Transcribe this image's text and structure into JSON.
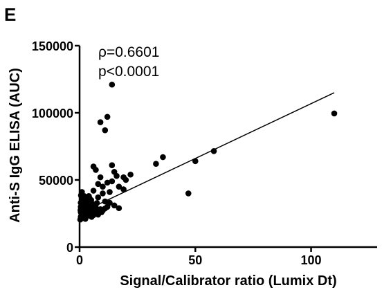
{
  "chart_data": {
    "type": "scatter",
    "panel_label": "E",
    "xlabel": "Signal/Calibrator ratio (Lumix Dt)",
    "ylabel": "Anti-S IgG ELISA (AUC)",
    "xlim": [
      0,
      120
    ],
    "ylim": [
      0,
      150000
    ],
    "xticks": [
      0,
      50,
      100
    ],
    "xtick_labels": [
      "0",
      "50",
      "100"
    ],
    "yticks": [
      0,
      50000,
      100000,
      150000
    ],
    "ytick_labels": [
      "0",
      "50000",
      "100000",
      "150000"
    ],
    "grid": false,
    "annotations": [
      "ρ=0.6601",
      "p<0.0001"
    ],
    "trendline": {
      "x": [
        0,
        110
      ],
      "y": [
        25200,
        115000
      ]
    },
    "points": [
      [
        110,
        99500
      ],
      [
        58,
        71500
      ],
      [
        50,
        64000
      ],
      [
        47,
        40000
      ],
      [
        36,
        67000
      ],
      [
        33,
        62000
      ],
      [
        14,
        121000
      ],
      [
        12,
        97000
      ],
      [
        9,
        93000
      ],
      [
        11,
        87000
      ],
      [
        6,
        60000
      ],
      [
        7,
        57500
      ],
      [
        14,
        61000
      ],
      [
        15,
        56000
      ],
      [
        16,
        53000
      ],
      [
        19,
        52000
      ],
      [
        22,
        54000
      ],
      [
        9,
        52000
      ],
      [
        12,
        48000
      ],
      [
        14,
        49000
      ],
      [
        20,
        50000
      ],
      [
        17,
        45000
      ],
      [
        8,
        47000
      ],
      [
        10,
        45000
      ],
      [
        6,
        42000
      ],
      [
        10,
        40000
      ],
      [
        13,
        41000
      ],
      [
        19,
        43000
      ],
      [
        4,
        38000
      ],
      [
        8,
        37000
      ],
      [
        11,
        34000
      ],
      [
        13,
        33000
      ],
      [
        15,
        31000
      ],
      [
        17,
        29000
      ],
      [
        12,
        30000
      ],
      [
        1,
        41000
      ],
      [
        2,
        38000
      ],
      [
        3,
        36000
      ],
      [
        5,
        35000
      ],
      [
        0.5,
        33000
      ],
      [
        1.5,
        34500
      ],
      [
        2.5,
        32000
      ],
      [
        3.5,
        33500
      ],
      [
        4.5,
        31000
      ],
      [
        5.5,
        30500
      ],
      [
        6,
        31800
      ],
      [
        7,
        29500
      ],
      [
        0.5,
        30000
      ],
      [
        1,
        29000
      ],
      [
        1.5,
        31500
      ],
      [
        2,
        28000
      ],
      [
        2.5,
        29700
      ],
      [
        3,
        27500
      ],
      [
        4,
        28500
      ],
      [
        5,
        27000
      ],
      [
        6.5,
        27800
      ],
      [
        8,
        26500
      ],
      [
        9,
        28200
      ],
      [
        10,
        27200
      ],
      [
        0.5,
        26000
      ],
      [
        1,
        25000
      ],
      [
        1.5,
        27000
      ],
      [
        2,
        24000
      ],
      [
        2.5,
        26500
      ],
      [
        3,
        25500
      ],
      [
        3.5,
        23500
      ],
      [
        4,
        25800
      ],
      [
        5,
        24500
      ],
      [
        6,
        23800
      ],
      [
        7,
        25500
      ],
      [
        8,
        24200
      ],
      [
        0.5,
        22500
      ],
      [
        1,
        21500
      ],
      [
        1.5,
        23000
      ],
      [
        2,
        22000
      ],
      [
        2.5,
        21000
      ],
      [
        3,
        22800
      ],
      [
        0.3,
        20500
      ],
      [
        0.8,
        24200
      ],
      [
        1.2,
        36500
      ],
      [
        0.6,
        38500
      ],
      [
        2.2,
        35800
      ],
      [
        4.2,
        36800
      ],
      [
        1.8,
        30500
      ],
      [
        3.8,
        29800
      ],
      [
        4.8,
        32500
      ],
      [
        5.8,
        28800
      ],
      [
        7.5,
        32800
      ],
      [
        0.4,
        27500
      ],
      [
        1.1,
        32500
      ],
      [
        3.2,
        26500
      ],
      [
        2.8,
        23500
      ],
      [
        6.2,
        26000
      ],
      [
        5.2,
        22500
      ],
      [
        9.5,
        26000
      ],
      [
        11,
        28800
      ]
    ],
    "colors": {
      "marker": "#000000",
      "axis": "#000000",
      "line": "#000000"
    }
  }
}
